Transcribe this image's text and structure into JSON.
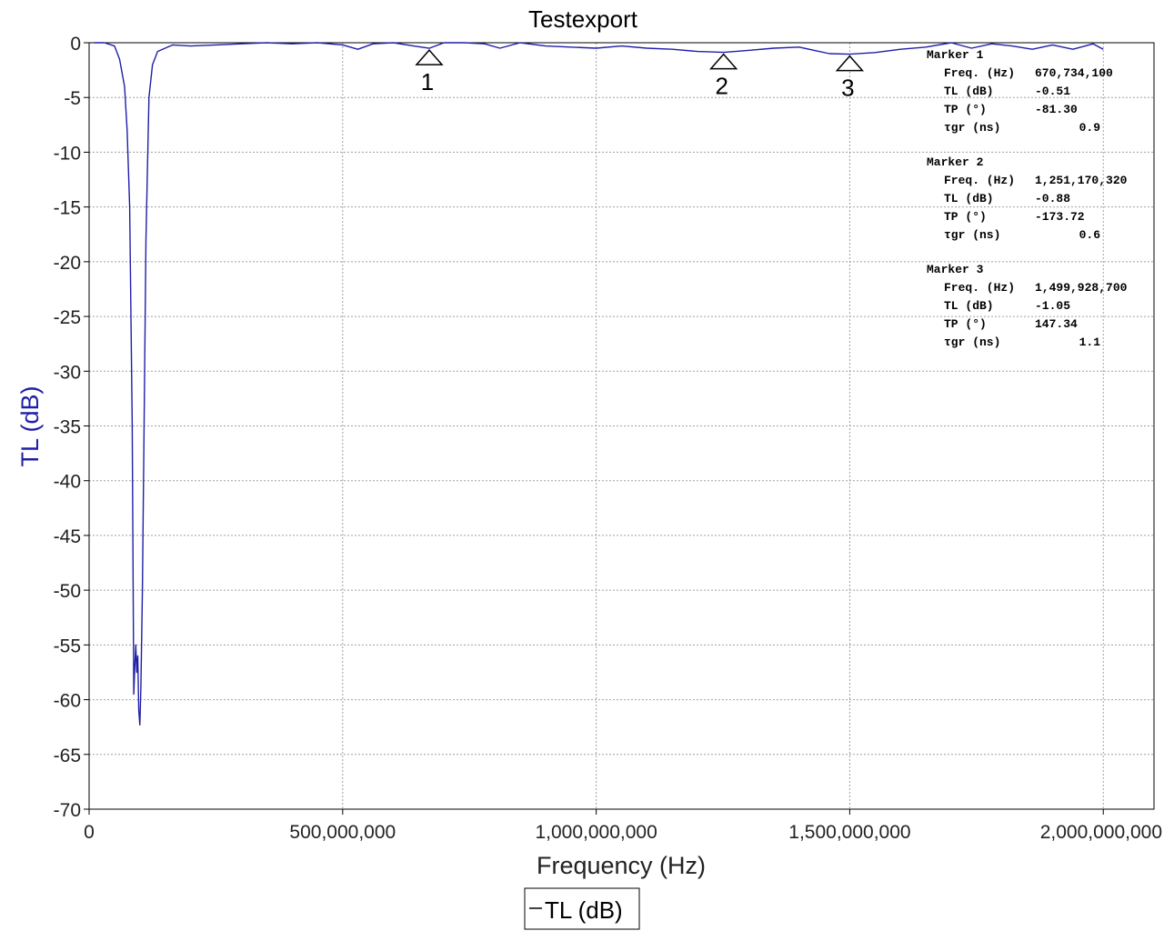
{
  "chart_data": {
    "type": "line",
    "title": "Testexport",
    "xlabel": "Frequency (Hz)",
    "ylabel": "TL (dB)",
    "xlim": [
      0,
      2100000000
    ],
    "ylim": [
      -70,
      0
    ],
    "x_ticks": [
      0,
      500000000,
      1000000000,
      1500000000,
      2000000000
    ],
    "x_tick_labels": [
      "0",
      "500,000,000",
      "1,000,000,000",
      "1,500,000,000",
      "2,000,000,000"
    ],
    "y_ticks": [
      0,
      -5,
      -10,
      -15,
      -20,
      -25,
      -30,
      -35,
      -40,
      -45,
      -50,
      -55,
      -60,
      -65,
      -70
    ],
    "y_tick_labels": [
      "0",
      "-5",
      "-10",
      "-15",
      "-20",
      "-25",
      "-30",
      "-35",
      "-40",
      "-45",
      "-50",
      "-55",
      "-60",
      "-65",
      "-70"
    ],
    "grid": true,
    "legend": "bottom-center",
    "series": [
      {
        "name": "TL (dB)",
        "color": "#1f1fa8",
        "x": [
          10000000,
          30000000,
          50000000,
          60000000,
          70000000,
          75000000,
          80000000,
          85000000,
          88000000,
          90000000,
          92000000,
          94000000,
          96000000,
          98000000,
          100000000,
          102000000,
          105000000,
          108000000,
          112000000,
          118000000,
          125000000,
          135000000,
          150000000,
          165000000,
          200000000,
          250000000,
          300000000,
          350000000,
          400000000,
          450000000,
          500000000,
          530000000,
          560000000,
          600000000,
          640000000,
          670734100,
          700000000,
          740000000,
          780000000,
          810000000,
          850000000,
          900000000,
          950000000,
          1000000000,
          1050000000,
          1100000000,
          1150000000,
          1200000000,
          1251170320,
          1300000000,
          1350000000,
          1400000000,
          1430000000,
          1460000000,
          1499928700,
          1550000000,
          1600000000,
          1650000000,
          1700000000,
          1740000000,
          1780000000,
          1820000000,
          1860000000,
          1900000000,
          1940000000,
          1980000000,
          2000000000
        ],
        "y": [
          0,
          0,
          -0.3,
          -1.5,
          -4,
          -8,
          -15,
          -35,
          -59.5,
          -57,
          -55,
          -57.5,
          -56,
          -61,
          -62.3,
          -59,
          -50,
          -37,
          -18,
          -5,
          -2,
          -0.8,
          -0.5,
          -0.2,
          -0.3,
          -0.2,
          -0.1,
          0,
          -0.1,
          0,
          -0.2,
          -0.6,
          -0.1,
          0,
          -0.3,
          -0.51,
          0,
          0,
          -0.1,
          -0.5,
          0,
          -0.3,
          -0.4,
          -0.5,
          -0.3,
          -0.5,
          -0.6,
          -0.8,
          -0.88,
          -0.7,
          -0.5,
          -0.4,
          -0.7,
          -1.0,
          -1.05,
          -0.9,
          -0.6,
          -0.4,
          0,
          -0.5,
          -0.1,
          -0.3,
          -0.6,
          -0.2,
          -0.6,
          -0.1,
          -0.6
        ]
      }
    ],
    "markers": [
      {
        "label": "1",
        "x": 670734100,
        "y": -0.51
      },
      {
        "label": "2",
        "x": 1251170320,
        "y": -0.88
      },
      {
        "label": "3",
        "x": 1499928700,
        "y": -1.05
      }
    ],
    "marker_table": [
      {
        "title": "Marker 1",
        "rows": [
          {
            "name": "Freq. (Hz)",
            "value": "670,734,100"
          },
          {
            "name": "TL (dB)",
            "value": "-0.51"
          },
          {
            "name": "TP (°)",
            "value": "-81.30"
          },
          {
            "name": "τgr (ns)",
            "value": "0.9"
          }
        ]
      },
      {
        "title": "Marker 2",
        "rows": [
          {
            "name": "Freq. (Hz)",
            "value": "1,251,170,320"
          },
          {
            "name": "TL (dB)",
            "value": "-0.88"
          },
          {
            "name": "TP (°)",
            "value": "-173.72"
          },
          {
            "name": "τgr (ns)",
            "value": "0.6"
          }
        ]
      },
      {
        "title": "Marker 3",
        "rows": [
          {
            "name": "Freq. (Hz)",
            "value": "1,499,928,700"
          },
          {
            "name": "TL (dB)",
            "value": "-1.05"
          },
          {
            "name": "TP (°)",
            "value": "147.34"
          },
          {
            "name": "τgr (ns)",
            "value": "1.1"
          }
        ]
      }
    ],
    "legend_entries": [
      "TL (dB)"
    ]
  },
  "colors": {
    "axis": "#000000",
    "grid": "#a0a0a0",
    "ylabel": "#1f1fa8",
    "series": "#1f1fa8"
  }
}
